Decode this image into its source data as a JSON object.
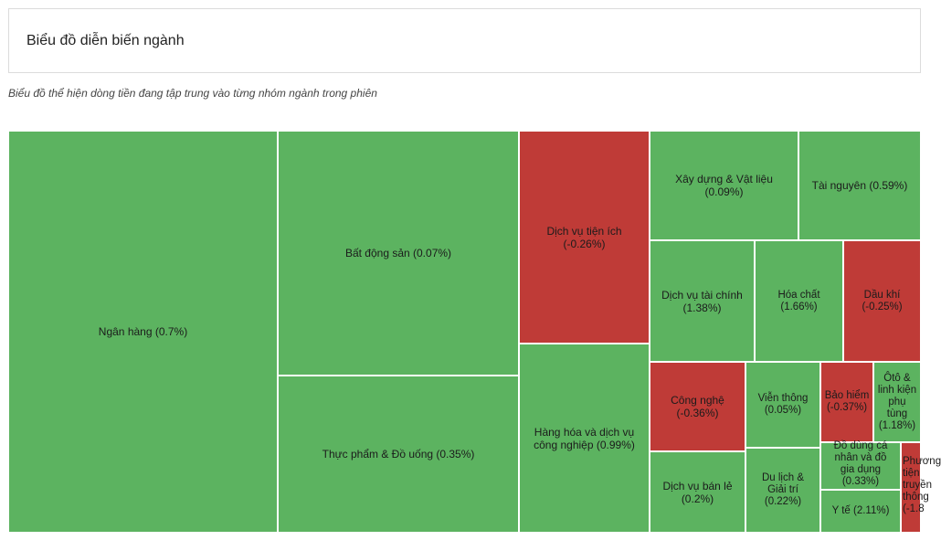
{
  "header": {
    "title": "Biểu đồ diễn biến ngành"
  },
  "subtitle": "Biểu đồ thể hiện dòng tiền đang tập trung vào từng nhóm ngành trong phiên",
  "colors": {
    "positive": "#5cb360",
    "negative": "#bf3b37"
  },
  "chart_data": {
    "type": "treemap",
    "title": "Biểu đồ diễn biến ngành",
    "items": [
      {
        "name": "Ngân hàng",
        "change_pct": 0.7,
        "label": "Ngân hàng (0.7%)"
      },
      {
        "name": "Bất động sản",
        "change_pct": 0.07,
        "label": "Bất động sản (0.07%)"
      },
      {
        "name": "Thực phẩm & Đồ uống",
        "change_pct": 0.35,
        "label": "Thực phẩm & Đồ uống (0.35%)"
      },
      {
        "name": "Dịch vụ tiện ích",
        "change_pct": -0.26,
        "label": "Dịch vụ tiện ích (-0.26%)"
      },
      {
        "name": "Hàng hóa và dịch vụ công nghiệp",
        "change_pct": 0.99,
        "label": "Hàng hóa và dịch vụ công nghiệp (0.99%)"
      },
      {
        "name": "Xây dựng & Vật liệu",
        "change_pct": 0.09,
        "label": "Xây dựng & Vật liệu (0.09%)"
      },
      {
        "name": "Tài nguyên",
        "change_pct": 0.59,
        "label": "Tài nguyên (0.59%)"
      },
      {
        "name": "Dịch vụ tài chính",
        "change_pct": 1.38,
        "label": "Dịch vụ tài chính (1.38%)"
      },
      {
        "name": "Hóa chất",
        "change_pct": 1.66,
        "label": "Hóa chất (1.66%)"
      },
      {
        "name": "Dầu khí",
        "change_pct": -0.25,
        "label": "Dầu khí (-0.25%)"
      },
      {
        "name": "Công nghệ",
        "change_pct": -0.36,
        "label": "Công nghệ (-0.36%)"
      },
      {
        "name": "Viễn thông",
        "change_pct": 0.05,
        "label": "Viễn thông (0.05%)"
      },
      {
        "name": "Bảo hiểm",
        "change_pct": -0.37,
        "label": "Bảo hiểm (-0.37%)"
      },
      {
        "name": "Ôtô & linh kiện phụ tùng",
        "change_pct": 1.18,
        "label": "Ôtô & linh kiện phụ tùng (1.18%)"
      },
      {
        "name": "Dịch vụ bán lẻ",
        "change_pct": 0.2,
        "label": "Dịch vụ bán lẻ (0.2%)"
      },
      {
        "name": "Du lịch & Giải trí",
        "change_pct": 0.22,
        "label": "Du lịch & Giải trí (0.22%)"
      },
      {
        "name": "Đồ dùng cá nhân và đồ gia dụng",
        "change_pct": 0.33,
        "label": "Đồ dùng cá nhân và đồ gia dụng (0.33%)"
      },
      {
        "name": "Y tế",
        "change_pct": 2.11,
        "label": "Y tế (2.11%)"
      },
      {
        "name": "Phương tiện truyền thông",
        "change_pct": -1.8,
        "label": "Phương tiện truyền thông (-1.8"
      }
    ]
  }
}
